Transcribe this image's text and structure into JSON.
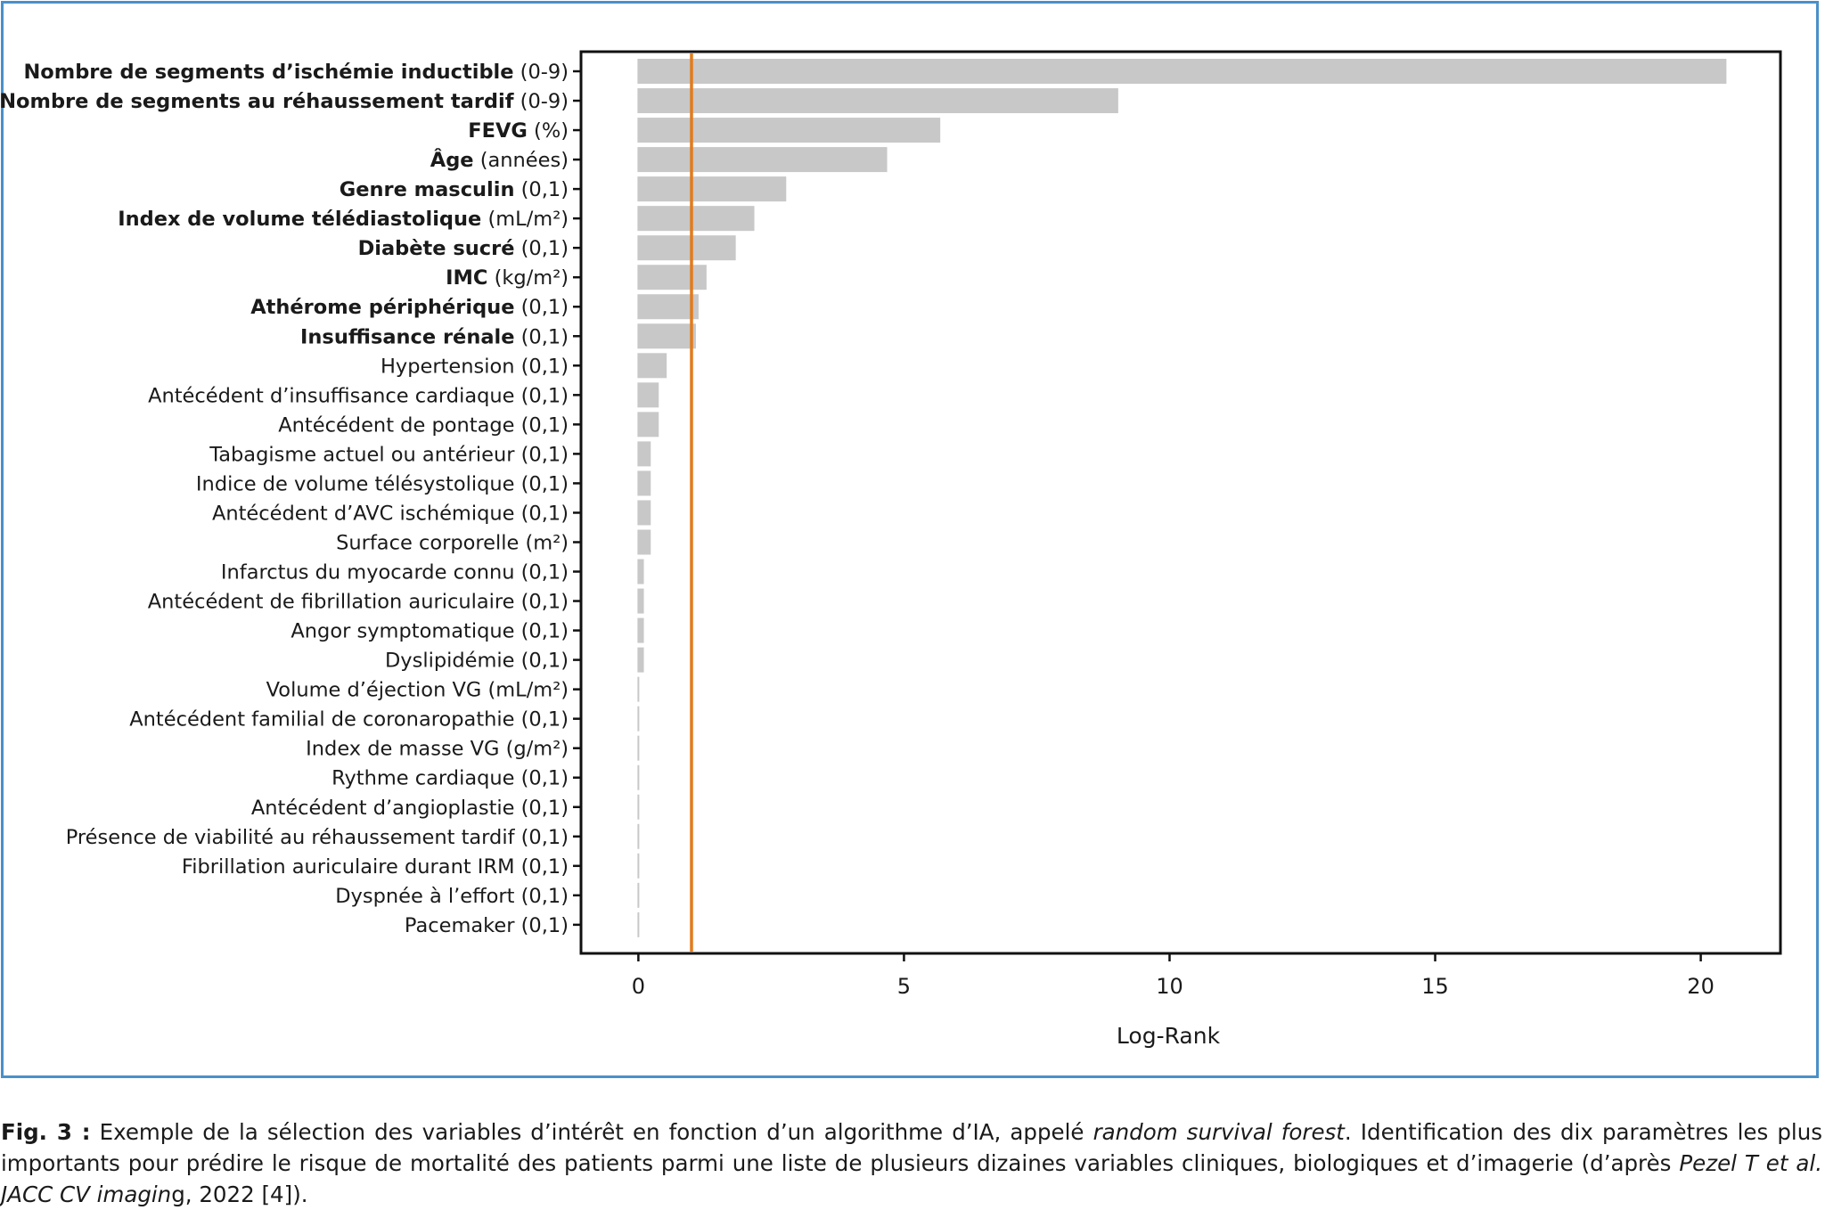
{
  "chart_data": {
    "type": "bar",
    "orientation": "horizontal",
    "xlabel": "Log-Rank",
    "xlim": [
      -1.08,
      21.5
    ],
    "xticks": [
      0,
      5,
      10,
      15,
      20
    ],
    "tick_labels": [
      "0",
      "5",
      "10",
      "15",
      "20"
    ],
    "reference_line": {
      "x": 1.0,
      "color": "#e07c1f"
    },
    "bar_color": "#c8c8c8",
    "categories": [
      {
        "name": "Nombre de segments d’ischémie inductible",
        "unit": "(0-9)",
        "bold": true,
        "value": 20.5
      },
      {
        "name": "Nombre de segments au réhaussement tardif",
        "unit": "(0-9)",
        "bold": true,
        "value": 9.05
      },
      {
        "name": "FEVG",
        "unit": "(%)",
        "bold": true,
        "value": 5.7
      },
      {
        "name": "Âge",
        "unit": "(années)",
        "bold": true,
        "value": 4.7
      },
      {
        "name": "Genre masculin",
        "unit": "(0,1)",
        "bold": true,
        "value": 2.8
      },
      {
        "name": "Index de volume télédiastolique",
        "unit": "(mL/m²)",
        "bold": true,
        "value": 2.2
      },
      {
        "name": "Diabète sucré",
        "unit": "(0,1)",
        "bold": true,
        "value": 1.85
      },
      {
        "name": "IMC",
        "unit": "(kg/m²)",
        "bold": true,
        "value": 1.3
      },
      {
        "name": "Athérome périphérique",
        "unit": "(0,1)",
        "bold": true,
        "value": 1.15
      },
      {
        "name": "Insuffisance rénale",
        "unit": "(0,1)",
        "bold": true,
        "value": 1.1
      },
      {
        "name": "Hypertension",
        "unit": "(0,1)",
        "bold": false,
        "value": 0.55
      },
      {
        "name": "Antécédent d’insuffisance cardiaque",
        "unit": "(0,1)",
        "bold": false,
        "value": 0.4
      },
      {
        "name": "Antécédent de pontage",
        "unit": "(0,1)",
        "bold": false,
        "value": 0.4
      },
      {
        "name": "Tabagisme actuel ou antérieur",
        "unit": "(0,1)",
        "bold": false,
        "value": 0.25
      },
      {
        "name": "Indice de volume télésystolique",
        "unit": "(0,1)",
        "bold": false,
        "value": 0.25
      },
      {
        "name": "Antécédent d’AVC ischémique",
        "unit": "(0,1)",
        "bold": false,
        "value": 0.25
      },
      {
        "name": "Surface corporelle",
        "unit": "(m²)",
        "bold": false,
        "value": 0.25
      },
      {
        "name": "Infarctus du myocarde connu",
        "unit": "(0,1)",
        "bold": false,
        "value": 0.12
      },
      {
        "name": "Antécédent de fibrillation auriculaire",
        "unit": "(0,1)",
        "bold": false,
        "value": 0.12
      },
      {
        "name": "Angor symptomatique",
        "unit": "(0,1)",
        "bold": false,
        "value": 0.12
      },
      {
        "name": "Dyslipidémie",
        "unit": "(0,1)",
        "bold": false,
        "value": 0.12
      },
      {
        "name": "Volume d’éjection VG",
        "unit": "(mL/m²)",
        "bold": false,
        "value": 0.03
      },
      {
        "name": "Antécédent familial de coronaropathie",
        "unit": "(0,1)",
        "bold": false,
        "value": 0.03
      },
      {
        "name": "Index de masse VG",
        "unit": "(g/m²)",
        "bold": false,
        "value": 0.03
      },
      {
        "name": "Rythme cardiaque",
        "unit": "(0,1)",
        "bold": false,
        "value": 0.03
      },
      {
        "name": "Antécédent d’angioplastie",
        "unit": "(0,1)",
        "bold": false,
        "value": 0.03
      },
      {
        "name": "Présence de viabilité au réhaussement tardif",
        "unit": "(0,1)",
        "bold": false,
        "value": 0.03
      },
      {
        "name": "Fibrillation auriculaire durant IRM",
        "unit": "(0,1)",
        "bold": false,
        "value": 0.03
      },
      {
        "name": "Dyspnée à l’effort",
        "unit": "(0,1)",
        "bold": false,
        "value": 0.03
      },
      {
        "name": "Pacemaker",
        "unit": "(0,1)",
        "bold": false,
        "value": 0.03
      }
    ]
  },
  "caption": {
    "fig_num": "Fig. 3 :",
    "part1": " Exemple de la sélection des variables d’intérêt en fonction d’un algorithme d’IA, appelé ",
    "italic1": "random survival forest",
    "part2": ". Identification des dix paramètres les plus importants pour prédire le risque de mortalité des patients parmi une liste de plusieurs dizaines variables cliniques, biologiques et d’imagerie (d’après ",
    "italic2": "Pezel T et al. JACC CV imagin",
    "part3": "g, 2022 [4])."
  },
  "colors": {
    "frame": "#4a90c8",
    "axis": "#111111"
  }
}
